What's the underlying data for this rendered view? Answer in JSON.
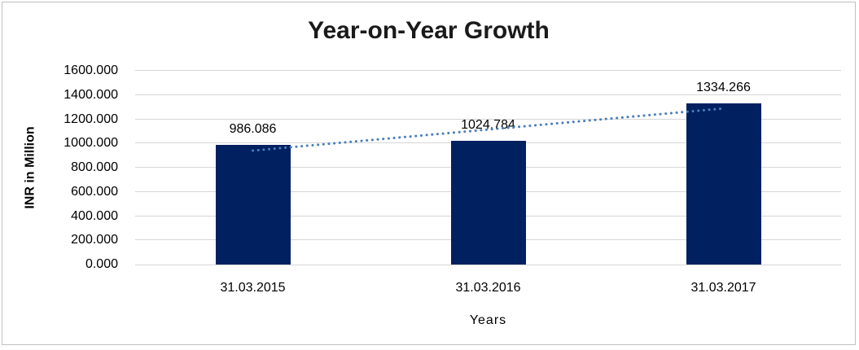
{
  "chart_data": {
    "type": "bar",
    "title": "Year-on-Year Growth",
    "xlabel": "Years",
    "ylabel": "INR in Million",
    "categories": [
      "31.03.2015",
      "31.03.2016",
      "31.03.2017"
    ],
    "values": [
      986.086,
      1024.784,
      1334.266
    ],
    "data_labels": [
      "986.086",
      "1024.784",
      "1334.266"
    ],
    "ylim": [
      0,
      1600
    ],
    "yticks": [
      0,
      200,
      400,
      600,
      800,
      1000,
      1200,
      1400,
      1600
    ],
    "ytick_labels": [
      "0.000",
      "200.000",
      "400.000",
      "600.000",
      "800.000",
      "1000.000",
      "1200.000",
      "1400.000",
      "1600.000"
    ],
    "grid": true,
    "legend": "none",
    "trendline": {
      "type": "linear",
      "style": "dotted",
      "color": "#4A7EBB"
    },
    "colors": {
      "bar": "#002060",
      "gridline": "#D6D6D6",
      "text": "#000000",
      "frame_border": "#BFBFBF",
      "background": "#FFFFFF"
    }
  }
}
